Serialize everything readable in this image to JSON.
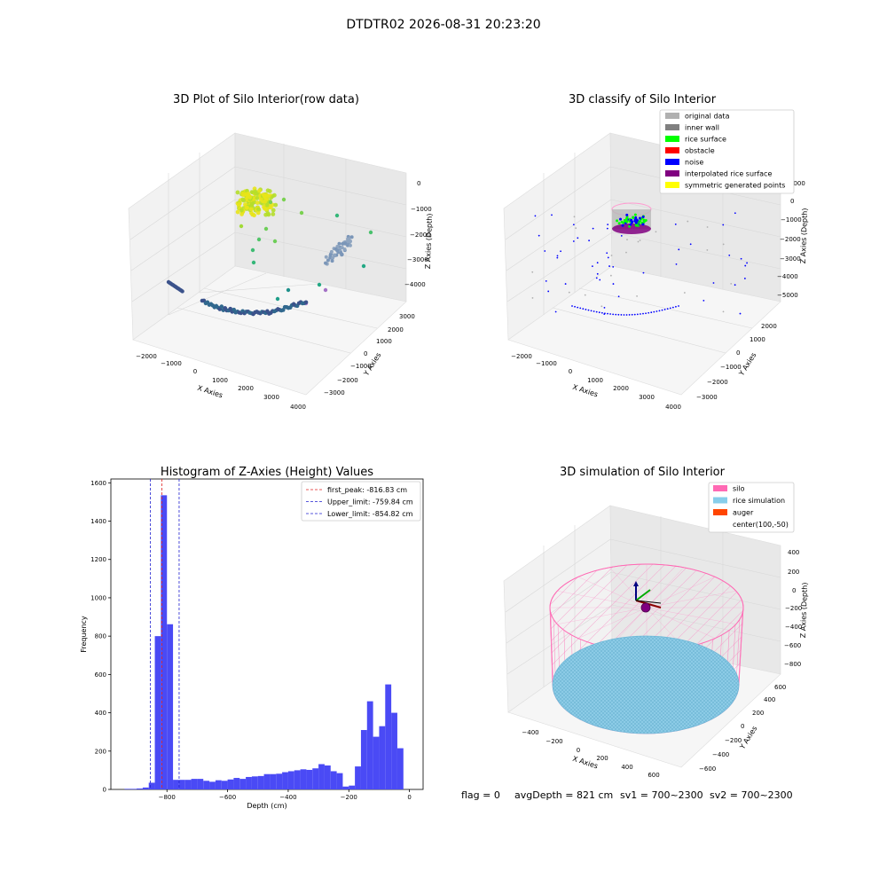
{
  "figure": {
    "suptitle": "DTDTR02 2026-08-31 20:23:20",
    "status": {
      "flag": "flag = 0",
      "avg_depth": "avgDepth = 821 cm",
      "sv1": "sv1 = 700~2300",
      "sv2": "sv2 = 700~2300"
    }
  },
  "chart_data": [
    {
      "type": "scatter",
      "title": "3D Plot of Silo Interior(row data)",
      "xlabel": "X Axies",
      "ylabel": "Y Axies",
      "zlabel": "Z Axies (Depth)",
      "x_ticks": [
        "−2000",
        "−1000",
        "0",
        "1000",
        "2000",
        "3000",
        "4000"
      ],
      "y_ticks": [
        "−3000",
        "−2000",
        "−1000",
        "0",
        "1000",
        "2000",
        "3000"
      ],
      "z_ticks": [
        "−4000",
        "−3000",
        "−2000",
        "−1000",
        "0"
      ],
      "colormap": "viridis",
      "clusters": [
        {
          "label_note": "top rice surface",
          "color": "#d8e219"
        },
        {
          "label_note": "floor arc",
          "color": "#31688e"
        },
        {
          "label_note": "right wall",
          "color": "#8fa5c0"
        }
      ]
    },
    {
      "type": "scatter",
      "title": "3D classify of Silo Interior",
      "xlabel": "X Axies",
      "ylabel": "Y Axies",
      "zlabel": "Z Axies (Depth)",
      "x_ticks": [
        "−2000",
        "−1000",
        "0",
        "1000",
        "2000",
        "3000",
        "4000"
      ],
      "y_ticks": [
        "−3000",
        "−2000",
        "−1000",
        "0",
        "1000",
        "2000"
      ],
      "z_ticks": [
        "−5000",
        "−4000",
        "−3000",
        "−2000",
        "−1000",
        "0",
        "1000"
      ],
      "legend_position": "top-right",
      "legend": [
        {
          "name": "original data",
          "color": "#b0b0b0"
        },
        {
          "name": "inner wall",
          "color": "#808080"
        },
        {
          "name": "rice surface",
          "color": "#00ff00"
        },
        {
          "name": "obstacle",
          "color": "#ff0000"
        },
        {
          "name": "noise",
          "color": "#0000ff"
        },
        {
          "name": "interpolated rice surface",
          "color": "#800080"
        },
        {
          "name": "symmetric generated points",
          "color": "#ffff00"
        }
      ]
    },
    {
      "type": "bar",
      "title": "Histogram of Z-Axies (Height) Values",
      "xlabel": "Depth (cm)",
      "ylabel": "Frequency",
      "xlim": [
        -985,
        45
      ],
      "ylim": [
        0,
        1620
      ],
      "x_ticks": [
        -800,
        -600,
        -400,
        -200,
        0
      ],
      "x_tick_labels": [
        "−800",
        "−600",
        "−400",
        "−200",
        "0"
      ],
      "y_ticks": [
        0,
        200,
        400,
        600,
        800,
        1000,
        1200,
        1400,
        1600
      ],
      "y_tick_labels": [
        "0",
        "200",
        "400",
        "600",
        "800",
        "1000",
        "1200",
        "1400",
        "1600"
      ],
      "bar_color": "#4a4af5",
      "bin_width": 20,
      "bins": [
        {
          "x0": -940,
          "value": 3
        },
        {
          "x0": -920,
          "value": 3
        },
        {
          "x0": -900,
          "value": 5
        },
        {
          "x0": -880,
          "value": 10
        },
        {
          "x0": -860,
          "value": 35
        },
        {
          "x0": -840,
          "value": 800
        },
        {
          "x0": -820,
          "value": 1535
        },
        {
          "x0": -800,
          "value": 862
        },
        {
          "x0": -780,
          "value": 50
        },
        {
          "x0": -760,
          "value": 50
        },
        {
          "x0": -740,
          "value": 50
        },
        {
          "x0": -720,
          "value": 55
        },
        {
          "x0": -700,
          "value": 55
        },
        {
          "x0": -680,
          "value": 45
        },
        {
          "x0": -660,
          "value": 40
        },
        {
          "x0": -640,
          "value": 48
        },
        {
          "x0": -620,
          "value": 45
        },
        {
          "x0": -600,
          "value": 52
        },
        {
          "x0": -580,
          "value": 60
        },
        {
          "x0": -560,
          "value": 55
        },
        {
          "x0": -540,
          "value": 65
        },
        {
          "x0": -520,
          "value": 68
        },
        {
          "x0": -500,
          "value": 70
        },
        {
          "x0": -480,
          "value": 80
        },
        {
          "x0": -460,
          "value": 80
        },
        {
          "x0": -440,
          "value": 82
        },
        {
          "x0": -420,
          "value": 90
        },
        {
          "x0": -400,
          "value": 95
        },
        {
          "x0": -380,
          "value": 100
        },
        {
          "x0": -360,
          "value": 105
        },
        {
          "x0": -340,
          "value": 102
        },
        {
          "x0": -320,
          "value": 110
        },
        {
          "x0": -300,
          "value": 132
        },
        {
          "x0": -280,
          "value": 125
        },
        {
          "x0": -260,
          "value": 95
        },
        {
          "x0": -240,
          "value": 85
        },
        {
          "x0": -220,
          "value": 15
        },
        {
          "x0": -200,
          "value": 20
        },
        {
          "x0": -180,
          "value": 120
        },
        {
          "x0": -160,
          "value": 310
        },
        {
          "x0": -140,
          "value": 460
        },
        {
          "x0": -120,
          "value": 275
        },
        {
          "x0": -100,
          "value": 330
        },
        {
          "x0": -80,
          "value": 548
        },
        {
          "x0": -60,
          "value": 400
        },
        {
          "x0": -40,
          "value": 215
        }
      ],
      "lines": [
        {
          "name": "first_peak: -816.83 cm",
          "x": -816.83,
          "color": "#e02020"
        },
        {
          "name": "Upper_limit: -759.84 cm",
          "x": -759.84,
          "color": "#2020d0"
        },
        {
          "name": "Lower_limit: -854.82 cm",
          "x": -854.82,
          "color": "#2020d0"
        }
      ],
      "legend_position": "top-right"
    },
    {
      "type": "scatter",
      "title": "3D simulation of Silo Interior",
      "xlabel": "X Axies",
      "ylabel": "Y Axies",
      "zlabel": "Z Axies (Depth)",
      "x_ticks": [
        "−400",
        "−200",
        "0",
        "200",
        "400",
        "600"
      ],
      "y_ticks": [
        "−600",
        "−400",
        "−200",
        "0",
        "200",
        "400",
        "600"
      ],
      "z_ticks": [
        "−800",
        "−600",
        "−400",
        "−200",
        "0",
        "200",
        "400"
      ],
      "legend_position": "top-right",
      "legend": [
        {
          "name": "silo",
          "color": "#ff69b4"
        },
        {
          "name": "rice simulation",
          "color": "#87ceeb"
        },
        {
          "name": "auger",
          "color": "#ff4500"
        },
        {
          "name": "center(100,-50)",
          "color": "none"
        }
      ]
    }
  ]
}
